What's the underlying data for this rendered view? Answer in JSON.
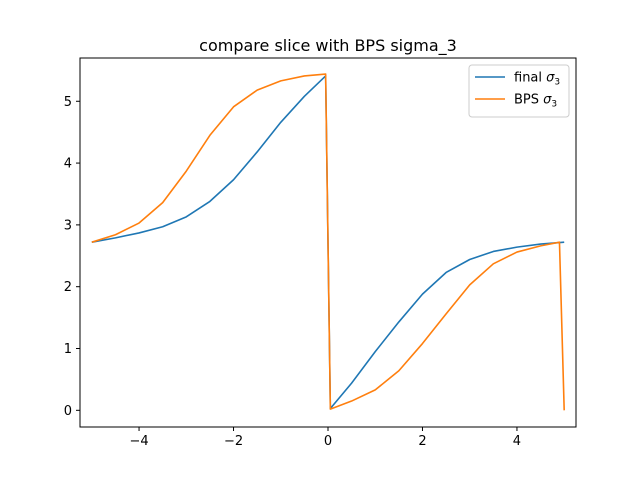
{
  "chart_data": {
    "type": "line",
    "title": "compare slice with BPS sigma_3",
    "xlabel": "",
    "ylabel": "",
    "xlim": [
      -5.25,
      5.25
    ],
    "ylim": [
      -0.27,
      5.7
    ],
    "xticks": [
      -4,
      -2,
      0,
      2,
      4
    ],
    "xtick_labels": [
      "−4",
      "−2",
      "0",
      "2",
      "4"
    ],
    "yticks": [
      0,
      1,
      2,
      3,
      4,
      5
    ],
    "ytick_labels": [
      "0",
      "1",
      "2",
      "3",
      "4",
      "5"
    ],
    "grid": false,
    "legend_position": "top-right",
    "series": [
      {
        "name": "final σ3",
        "legend_main": "final ",
        "legend_sym": "σ",
        "legend_sub": "3",
        "color": "#1f77b4",
        "x": [
          -5.0,
          -4.5,
          -4.0,
          -3.5,
          -3.0,
          -2.5,
          -2.0,
          -1.5,
          -1.0,
          -0.5,
          -0.05,
          0.05,
          0.5,
          1.0,
          1.5,
          2.0,
          2.5,
          3.0,
          3.5,
          4.0,
          4.5,
          5.0
        ],
        "y": [
          2.72,
          2.79,
          2.87,
          2.97,
          3.13,
          3.38,
          3.73,
          4.18,
          4.66,
          5.08,
          5.41,
          0.03,
          0.44,
          0.95,
          1.43,
          1.88,
          2.23,
          2.44,
          2.57,
          2.64,
          2.69,
          2.72
        ]
      },
      {
        "name": "BPS σ3",
        "legend_main": "BPS ",
        "legend_sym": "σ",
        "legend_sub": "3",
        "color": "#ff7f0e",
        "x": [
          -5.0,
          -4.5,
          -4.0,
          -3.5,
          -3.0,
          -2.5,
          -2.0,
          -1.5,
          -1.0,
          -0.5,
          -0.05,
          0.05,
          0.5,
          1.0,
          1.5,
          2.0,
          2.5,
          3.0,
          3.5,
          4.0,
          4.5,
          4.9,
          5.0
        ],
        "y": [
          2.72,
          2.84,
          3.03,
          3.36,
          3.87,
          4.45,
          4.91,
          5.18,
          5.33,
          5.41,
          5.44,
          0.02,
          0.15,
          0.33,
          0.64,
          1.08,
          1.56,
          2.03,
          2.37,
          2.56,
          2.66,
          2.72,
          0.0
        ]
      }
    ]
  }
}
